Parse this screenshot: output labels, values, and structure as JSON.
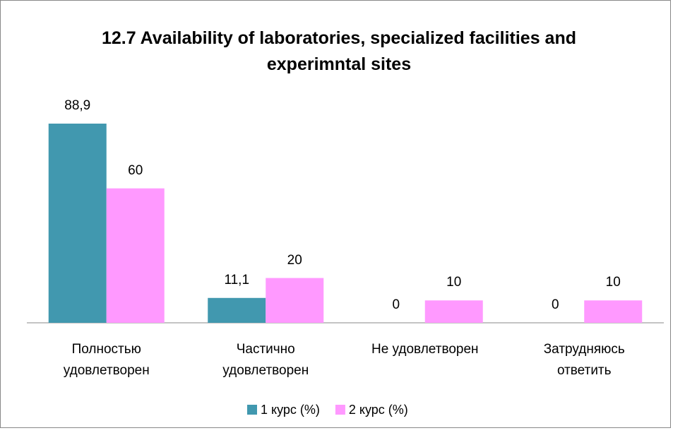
{
  "chart_data": {
    "type": "bar",
    "title": "12.7 Availability of laboratories, specialized facilities and experimntal sites",
    "categories": [
      "Полностью удовлетворен",
      "Частично удовлетворен",
      "Не удовлетворен",
      "Затрудняюсь ответить"
    ],
    "series": [
      {
        "name": "1 курс (%)",
        "color": "#4198af",
        "values": [
          88.9,
          11.1,
          0,
          0
        ],
        "value_labels": [
          "88,9",
          "11,1",
          "0",
          "0"
        ]
      },
      {
        "name": "2 курс (%)",
        "color": "#ff99ff",
        "values": [
          60,
          20,
          10,
          10
        ]
      }
    ],
    "legend": "bottom"
  }
}
